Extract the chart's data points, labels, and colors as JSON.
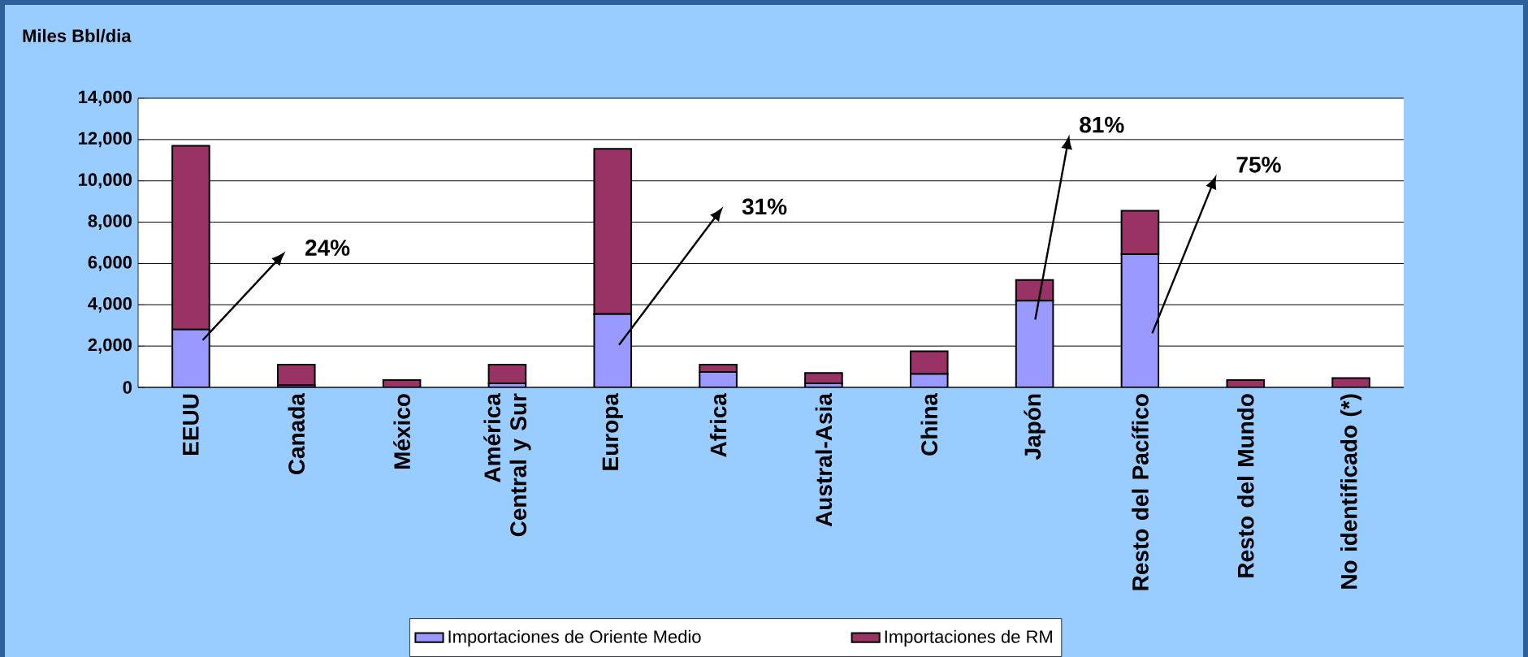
{
  "chart_data": {
    "type": "bar",
    "stacked": true,
    "ylabel": "Miles Bbl/dia",
    "categories": [
      "EEUU",
      "Canada",
      "México",
      "América Central y Sur",
      "Europa",
      "Africa",
      "Austral-Asia",
      "China",
      "Japón",
      "Resto del Pacífico",
      "Resto del Mundo",
      "No identificado (*)"
    ],
    "series": [
      {
        "name": "Importaciones de Oriente Medio",
        "color": "#9999ff",
        "values": [
          2800,
          100,
          0,
          200,
          3550,
          750,
          200,
          650,
          4200,
          6450,
          0,
          0
        ]
      },
      {
        "name": "Importaciones de RM",
        "color": "#993366",
        "values": [
          8900,
          1000,
          350,
          900,
          8000,
          350,
          500,
          1100,
          1000,
          2100,
          350,
          450
        ]
      }
    ],
    "ylim": [
      0,
      14000
    ],
    "yticks": [
      {
        "value": 0,
        "label": "0"
      },
      {
        "value": 2000,
        "label": "2,000"
      },
      {
        "value": 4000,
        "label": "4,000"
      },
      {
        "value": 6000,
        "label": "6,000"
      },
      {
        "value": 8000,
        "label": "8,000"
      },
      {
        "value": 10000,
        "label": "10,000"
      },
      {
        "value": 12000,
        "label": "12,000"
      },
      {
        "value": 14000,
        "label": "14,000"
      }
    ],
    "grid": "y",
    "legend": "bottom",
    "annotations": [
      "24%",
      "31%",
      "81%",
      "75%"
    ]
  }
}
